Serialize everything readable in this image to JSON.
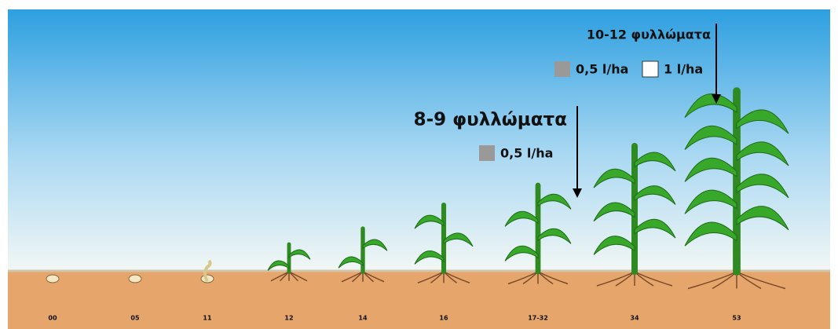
{
  "annotations": [
    {
      "title": "10-12 φυλλώματα",
      "doses": [
        "0,5 l/ha",
        "1 l/ha"
      ]
    },
    {
      "title": "8-9 φυλλώματα",
      "doses": [
        "0,5 l/ha"
      ]
    }
  ],
  "stages": [
    "00",
    "05",
    "11",
    "12",
    "14",
    "16",
    "17-32",
    "34",
    "53"
  ]
}
